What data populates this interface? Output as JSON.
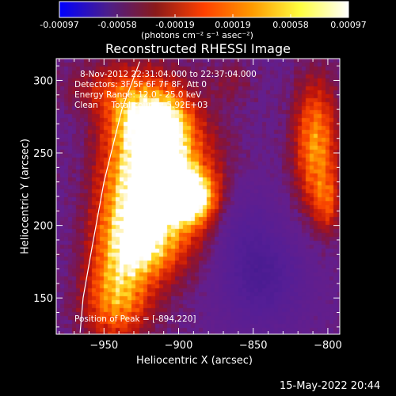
{
  "colorbar": {
    "ticks": [
      "-0.00097",
      "-0.00058",
      "-0.00019",
      "0.00019",
      "0.00058",
      "0.00097"
    ],
    "unit_label": "(photons cm⁻² s⁻¹ asec⁻²)",
    "colormap": [
      "#0000ff",
      "#4b1e8c",
      "#8a1a1a",
      "#ff4000",
      "#ff9a00",
      "#ffff40",
      "#ffffff"
    ]
  },
  "plot": {
    "title": "Reconstructed RHESSI Image",
    "info_lines": [
      "8-Nov-2012 22:31:04.000 to 22:37:04.000",
      "Detectors: 3F 5F 6F 7F 8F, Att 0",
      "Energy Range: 12.0 - 25.0 keV",
      "Clean     Total counts: 5.92E+03"
    ],
    "peak_label": "Position of Peak = [-894,220]",
    "footer_timestamp": "15-May-2022 20:44"
  },
  "chart_data": {
    "type": "heatmap",
    "title": "Reconstructed RHESSI Image",
    "xlabel": "Heliocentric X (arcsec)",
    "ylabel": "Heliocentric Y (arcsec)",
    "xlim": [
      -982,
      -792
    ],
    "ylim": [
      125,
      315
    ],
    "x_ticks": [
      -950,
      -900,
      -850,
      -800
    ],
    "y_ticks": [
      150,
      200,
      250,
      300
    ],
    "colorbar_range": [
      -0.00097,
      0.00097
    ],
    "peak": {
      "x": -894,
      "y": 220
    },
    "limb_curve": [
      [
        -926,
        313
      ],
      [
        -938,
        280
      ],
      [
        -950,
        230
      ],
      [
        -958,
        185
      ],
      [
        -964,
        150
      ],
      [
        -966,
        126
      ]
    ],
    "sources": [
      {
        "x": -894,
        "y": 220,
        "sx": 12,
        "sy": 12,
        "amp": 1.0
      },
      {
        "x": -908,
        "y": 230,
        "sx": 22,
        "sy": 35,
        "amp": 0.85
      },
      {
        "x": -930,
        "y": 230,
        "sx": 16,
        "sy": 45,
        "amp": 0.55
      },
      {
        "x": -922,
        "y": 275,
        "sx": 16,
        "sy": 15,
        "amp": 0.55
      },
      {
        "x": -905,
        "y": 265,
        "sx": 10,
        "sy": 18,
        "amp": 0.4
      },
      {
        "x": -940,
        "y": 175,
        "sx": 14,
        "sy": 30,
        "amp": 0.5
      },
      {
        "x": -920,
        "y": 185,
        "sx": 14,
        "sy": 14,
        "amp": 0.35
      },
      {
        "x": -945,
        "y": 145,
        "sx": 15,
        "sy": 18,
        "amp": 0.35
      },
      {
        "x": -950,
        "y": 295,
        "sx": 18,
        "sy": 12,
        "amp": 0.25
      },
      {
        "x": -808,
        "y": 255,
        "sx": 10,
        "sy": 30,
        "amp": 0.7
      },
      {
        "x": -800,
        "y": 215,
        "sx": 6,
        "sy": 14,
        "amp": 0.35
      },
      {
        "x": -865,
        "y": 300,
        "sx": 10,
        "sy": 10,
        "amp": 0.15
      }
    ],
    "negative_sources": [
      {
        "x": -845,
        "y": 165,
        "sx": 20,
        "sy": 25,
        "amp": 0.35
      },
      {
        "x": -860,
        "y": 205,
        "sx": 14,
        "sy": 20,
        "amp": 0.15
      }
    ]
  }
}
